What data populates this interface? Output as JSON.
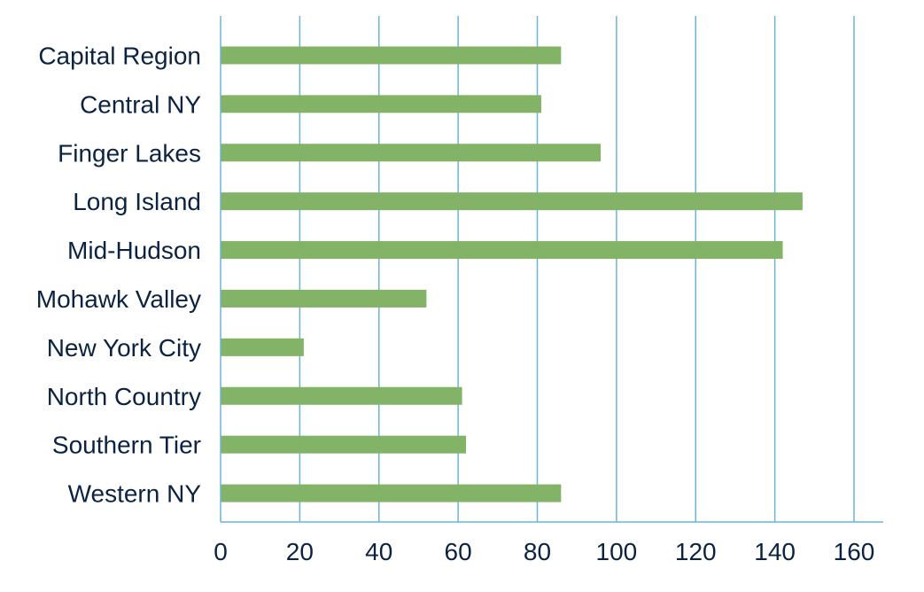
{
  "chart_data": {
    "type": "bar",
    "orientation": "horizontal",
    "categories": [
      "Capital Region",
      "Central NY",
      "Finger Lakes",
      "Long Island",
      "Mid-Hudson",
      "Mohawk Valley",
      "New York City",
      "North Country",
      "Southern Tier",
      "Western NY"
    ],
    "values": [
      86,
      81,
      96,
      147,
      142,
      52,
      21,
      61,
      62,
      86
    ],
    "title": "",
    "xlabel": "",
    "ylabel": "",
    "xlim": [
      0,
      167
    ],
    "xticks": [
      0,
      20,
      40,
      60,
      80,
      100,
      120,
      140,
      160
    ],
    "xtick_labels": [
      "0",
      "20",
      "40",
      "60",
      "80",
      "100",
      "120",
      "140",
      "160"
    ],
    "grid": "vertical",
    "legend": "none",
    "colors": {
      "bar": "#82b366",
      "grid": "#6cb4d4",
      "text": "#0b2341"
    }
  }
}
